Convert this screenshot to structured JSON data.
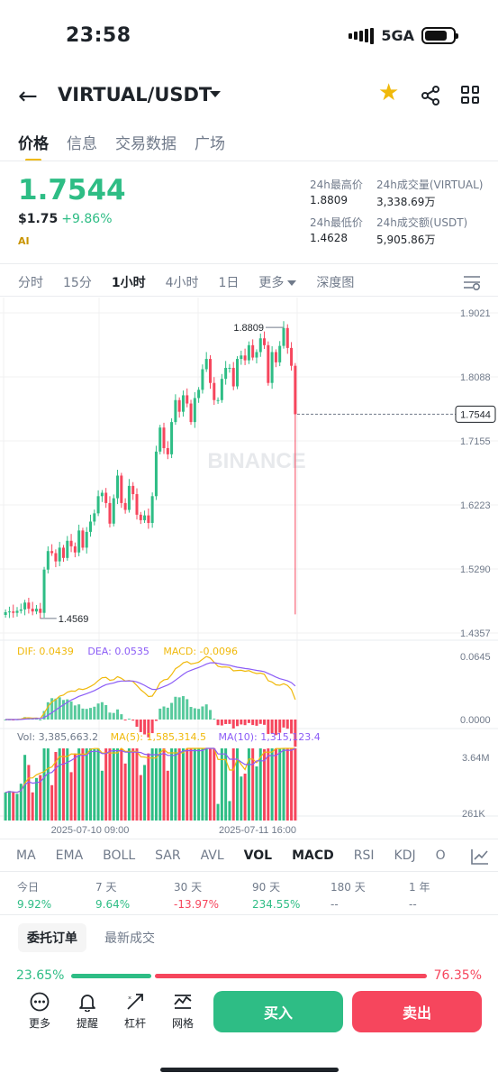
{
  "status": {
    "time": "23:58",
    "network": "5GA"
  },
  "header": {
    "pair": "VIRTUAL/USDT",
    "icons": [
      "back-arrow-icon",
      "star-icon",
      "share-icon",
      "grid-icon"
    ]
  },
  "tabs": [
    "价格",
    "信息",
    "交易数据",
    "广场"
  ],
  "price": {
    "last": "1.7544",
    "usd": "$1.75",
    "change": "+9.86%",
    "ai": "AI"
  },
  "stats": {
    "high_label": "24h最高价",
    "high": "1.8809",
    "low_label": "24h最低价",
    "low": "1.4628",
    "vol_label": "24h成交量(VIRTUAL)",
    "vol": "3,338.69万",
    "amount_label": "24h成交额(USDT)",
    "amount": "5,905.86万"
  },
  "intervals": [
    "分时",
    "15分",
    "1小时",
    "4小时",
    "1日",
    "更多",
    "深度图"
  ],
  "chart_data": {
    "type": "candlestick",
    "watermark": "BINANCE",
    "price_axis": [
      "1.9021",
      "1.8088",
      "1.7155",
      "1.6223",
      "1.5290",
      "1.4357"
    ],
    "ylim": [
      1.4357,
      1.9021
    ],
    "current_price": "1.7544",
    "high_marker": "1.8809",
    "low_marker": "1.4569",
    "time_labels": [
      "2025-07-10 09:00",
      "2025-07-11 16:00"
    ],
    "closes": [
      1.466,
      1.467,
      1.465,
      1.468,
      1.47,
      1.48,
      1.471,
      1.467,
      1.471,
      1.465,
      1.528,
      1.555,
      1.552,
      1.54,
      1.56,
      1.545,
      1.57,
      1.562,
      1.553,
      1.585,
      1.56,
      1.583,
      1.598,
      1.61,
      1.635,
      1.64,
      1.625,
      1.595,
      1.632,
      1.665,
      1.625,
      1.615,
      1.65,
      1.638,
      1.608,
      1.6,
      1.607,
      1.596,
      1.635,
      1.7,
      1.735,
      1.705,
      1.696,
      1.743,
      1.775,
      1.758,
      1.782,
      1.77,
      1.743,
      1.778,
      1.79,
      1.82,
      1.835,
      1.8,
      1.775,
      1.775,
      1.806,
      1.822,
      1.822,
      1.795,
      1.835,
      1.84,
      1.833,
      1.855,
      1.837,
      1.845,
      1.865,
      1.855,
      1.8,
      1.845,
      1.83,
      1.854,
      1.88,
      1.851,
      1.825,
      1.7544
    ],
    "macd": {
      "dif": "0.0439",
      "dea": "0.0535",
      "macd": "-0.0096",
      "axis": [
        "0.0645",
        "0.0000"
      ]
    },
    "volume": {
      "vol": "3,385,663.2",
      "ma5": "1,585,314.5",
      "ma10": "1,315,123.4",
      "axis": [
        "3.64M",
        "261K"
      ]
    },
    "colors": {
      "up": "#2ebd85",
      "down": "#f6465d",
      "dif": "#f0b90b",
      "dea": "#8b5cf6",
      "ma5": "#f0b90b",
      "ma10": "#8b5cf6"
    }
  },
  "indicators": [
    "MA",
    "EMA",
    "BOLL",
    "SAR",
    "AVL",
    "VOL",
    "MACD",
    "RSI",
    "KDJ",
    "O"
  ],
  "performance": [
    {
      "label": "今日",
      "value": "9.92%",
      "color": "#2ebd85"
    },
    {
      "label": "7 天",
      "value": "9.64%",
      "color": "#2ebd85"
    },
    {
      "label": "30 天",
      "value": "-13.97%",
      "color": "#f6465d"
    },
    {
      "label": "90 天",
      "value": "234.55%",
      "color": "#2ebd85"
    },
    {
      "label": "180 天",
      "value": "--",
      "color": "#707a8a"
    },
    {
      "label": "1 年",
      "value": "--",
      "color": "#707a8a"
    }
  ],
  "order_tabs": [
    "委托订单",
    "最新成交"
  ],
  "ratio": {
    "buy": "23.65%",
    "sell": "76.35%",
    "buy_fraction": 0.2365
  },
  "bottom": {
    "more": "更多",
    "alert": "提醒",
    "leverage": "杠杆",
    "grid": "网格",
    "buy": "买入",
    "sell": "卖出"
  }
}
